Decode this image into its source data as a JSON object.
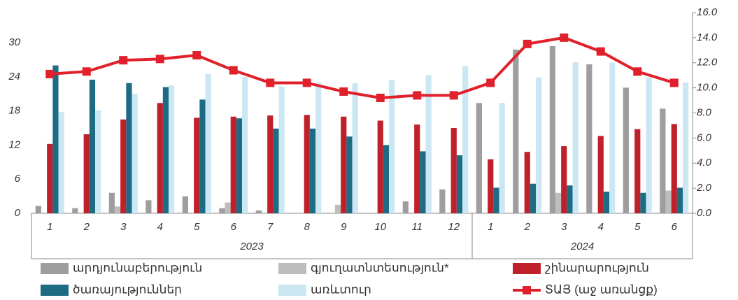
{
  "chart_data": {
    "type": "bar",
    "categories": [
      "1",
      "2",
      "3",
      "4",
      "5",
      "6",
      "7",
      "8",
      "9",
      "10",
      "11",
      "12",
      "1",
      "2",
      "3",
      "4",
      "5",
      "6"
    ],
    "x_groups": [
      "2023",
      "2024"
    ],
    "series": [
      {
        "name": "արդյունաբերություն",
        "color": "#9e9e9e",
        "values": [
          1.3,
          0.9,
          3.6,
          2.3,
          3.0,
          0.9,
          0.5,
          0,
          0,
          0,
          2.1,
          4.2,
          19.4,
          28.8,
          29.4,
          26.2,
          22.1,
          18.4
        ]
      },
      {
        "name": "գյուղատնտեսություն*",
        "color": "#bdbdbd",
        "values": [
          0,
          0,
          1.2,
          0,
          0,
          1.9,
          0,
          0,
          1.5,
          0,
          0,
          0,
          0,
          0,
          3.6,
          0,
          0,
          4.0
        ]
      },
      {
        "name": "շինարարություն",
        "color": "#c0202a",
        "values": [
          12.2,
          13.9,
          16.5,
          19.4,
          16.8,
          17.0,
          17.2,
          17.3,
          17.0,
          16.3,
          15.6,
          15.0,
          9.5,
          10.8,
          11.8,
          13.6,
          14.8,
          15.7
        ]
      },
      {
        "name": "ծառայություններ",
        "color": "#1d6c84",
        "values": [
          26.0,
          23.5,
          22.9,
          22.2,
          20.0,
          16.7,
          14.9,
          14.9,
          13.5,
          12.0,
          10.9,
          10.2,
          4.5,
          5.2,
          4.9,
          3.8,
          3.6,
          4.5
        ]
      },
      {
        "name": "առևտուր",
        "color": "#cbe7f3",
        "values": [
          17.8,
          18.1,
          21.0,
          22.5,
          24.5,
          24.0,
          22.3,
          23.0,
          22.9,
          23.4,
          24.3,
          25.9,
          19.4,
          23.9,
          26.6,
          26.5,
          23.9,
          23.0
        ]
      },
      {
        "name": "ՏԱՅ (աջ առանցք)",
        "color": "#e0202a",
        "type": "line",
        "axis": "y2",
        "values": [
          11.1,
          11.3,
          12.2,
          12.3,
          12.6,
          11.4,
          10.4,
          10.4,
          9.7,
          9.2,
          9.4,
          9.4,
          10.4,
          13.5,
          14.0,
          12.9,
          11.3,
          10.4
        ]
      }
    ],
    "ylim": [
      0,
      35.3
    ],
    "yticks": [
      0,
      6,
      12,
      18,
      24,
      30
    ],
    "y2lim": [
      0,
      16
    ],
    "y2ticks": [
      {
        "value": 0,
        "label": "0.0"
      },
      {
        "value": 2,
        "label": "2.0"
      },
      {
        "value": 4,
        "label": "4.0"
      },
      {
        "value": 6,
        "label": "6.0"
      },
      {
        "value": 8,
        "label": "8.0"
      },
      {
        "value": 10,
        "label": "10.0"
      },
      {
        "value": 12,
        "label": "12.0"
      },
      {
        "value": 14,
        "label": "14.0"
      },
      {
        "value": 16,
        "label": "16.0"
      }
    ]
  }
}
